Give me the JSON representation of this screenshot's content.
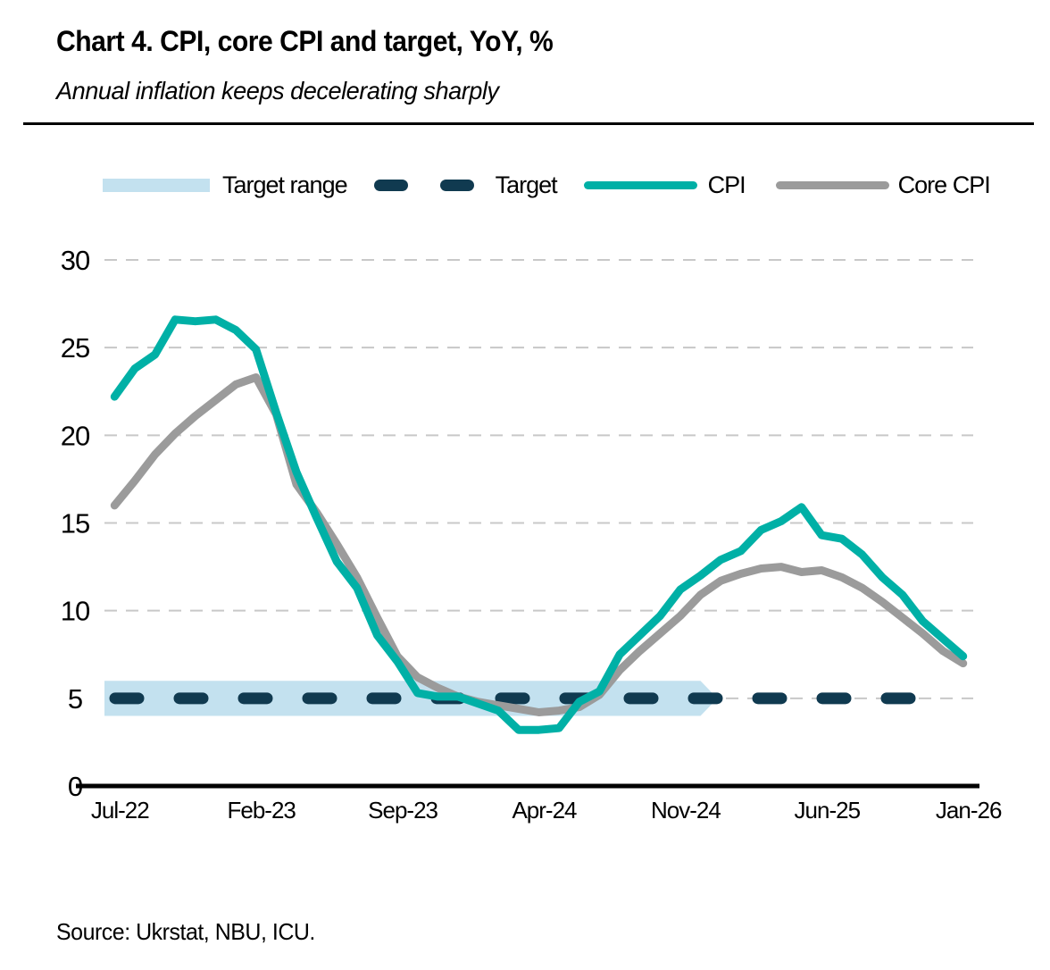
{
  "header": {
    "title": "Chart 4. CPI, core CPI and target, YoY, %",
    "subtitle": "Annual inflation keeps decelerating sharply"
  },
  "legend": {
    "target_range_label": "Target range",
    "target_label": "Target",
    "cpi_label": "CPI",
    "core_cpi_label": "Core CPI"
  },
  "source": {
    "text": "Source: Ukrstat, NBU, ICU."
  },
  "colors": {
    "cpi": "#00B0A6",
    "core_cpi": "#9B9B9B",
    "target": "#103A50",
    "target_band": "#C3E1EF",
    "gridline": "#C8C8C8",
    "axis": "#000000",
    "text": "#000000"
  },
  "chart_data": {
    "type": "line",
    "title": "Chart 4. CPI, core CPI and target, YoY, %",
    "subtitle": "Annual inflation keeps decelerating sharply",
    "ylabel": "YoY, %",
    "ylim": [
      0,
      30
    ],
    "y_ticks": [
      0,
      5,
      10,
      15,
      20,
      25,
      30
    ],
    "grid": "horizontal-dashed",
    "legend_position": "top",
    "x_ticks_shown": [
      "Jul-22",
      "Feb-23",
      "Sep-23",
      "Apr-24",
      "Nov-24",
      "Jun-25",
      "Jan-26"
    ],
    "x_tick_indices": [
      0,
      7,
      14,
      21,
      28,
      35,
      42
    ],
    "months": [
      "Jul-22",
      "Aug-22",
      "Sep-22",
      "Oct-22",
      "Nov-22",
      "Dec-22",
      "Jan-23",
      "Feb-23",
      "Mar-23",
      "Apr-23",
      "May-23",
      "Jun-23",
      "Jul-23",
      "Aug-23",
      "Sep-23",
      "Oct-23",
      "Nov-23",
      "Dec-23",
      "Jan-24",
      "Feb-24",
      "Mar-24",
      "Apr-24",
      "May-24",
      "Jun-24",
      "Jul-24",
      "Aug-24",
      "Sep-24",
      "Oct-24",
      "Nov-24",
      "Dec-24",
      "Jan-25",
      "Feb-25",
      "Mar-25",
      "Apr-25",
      "May-25",
      "Jun-25",
      "Jul-25",
      "Aug-25",
      "Sep-25",
      "Oct-25",
      "Nov-25",
      "Dec-25",
      "Jan-26"
    ],
    "target_value": 5,
    "target_range": [
      4,
      6
    ],
    "target_band_end_month": "Dec-24",
    "series": [
      {
        "name": "CPI",
        "color_key": "cpi",
        "values": [
          22.2,
          23.8,
          24.6,
          26.6,
          26.5,
          26.6,
          26.0,
          24.9,
          21.3,
          17.9,
          15.3,
          12.8,
          11.3,
          8.6,
          7.1,
          5.3,
          5.1,
          5.1,
          4.7,
          4.3,
          3.2,
          3.2,
          3.3,
          4.8,
          5.4,
          7.5,
          8.6,
          9.7,
          11.2,
          12.0,
          12.9,
          13.4,
          14.6,
          15.1,
          15.9,
          14.3,
          14.1,
          13.2,
          11.9,
          10.9,
          9.4,
          8.4,
          7.4
        ]
      },
      {
        "name": "Core CPI",
        "color_key": "core_cpi",
        "values": [
          16.0,
          17.4,
          18.9,
          20.1,
          21.1,
          22.0,
          22.9,
          23.3,
          21.2,
          17.2,
          15.6,
          13.8,
          11.9,
          9.6,
          7.4,
          6.2,
          5.6,
          5.1,
          4.8,
          4.6,
          4.4,
          4.2,
          4.3,
          4.5,
          5.2,
          6.6,
          7.7,
          8.7,
          9.7,
          10.9,
          11.7,
          12.1,
          12.4,
          12.5,
          12.2,
          12.3,
          11.9,
          11.3,
          10.5,
          9.6,
          8.7,
          7.7,
          7.0
        ]
      }
    ]
  }
}
